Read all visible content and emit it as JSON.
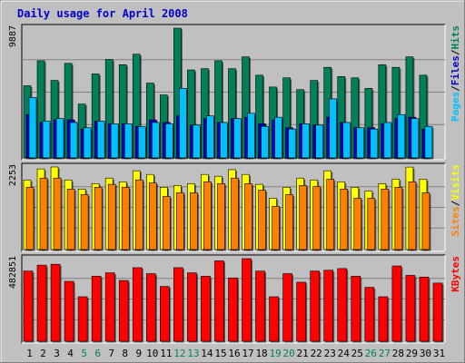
{
  "title": "Daily usage for April 2008",
  "colors": {
    "background": "#c0c0c0",
    "panel": "#c0c0c0",
    "title": "#0000cc",
    "hits": "#00805a",
    "files": "#0000cc",
    "pages": "#00c0ff",
    "visits": "#ffff00",
    "sites": "#ff8000",
    "kbytes": "#ff0000",
    "day_normal": "#000000",
    "day_weekend": "#008060"
  },
  "chart_data": [
    {
      "type": "bar",
      "panel": "hits-files-pages",
      "ymax_label": "9887",
      "ylim": [
        0,
        9887
      ],
      "grid": true,
      "legend": {
        "placement": "right",
        "entries": [
          {
            "name": "Hits",
            "color": "#00805a"
          },
          {
            "name": "Files",
            "color": "#0000cc"
          },
          {
            "name": "Pages",
            "color": "#00c0ff"
          }
        ]
      },
      "categories": [
        "1",
        "2",
        "3",
        "4",
        "5",
        "6",
        "7",
        "8",
        "9",
        "10",
        "11",
        "12",
        "13",
        "14",
        "15",
        "16",
        "17",
        "18",
        "19",
        "20",
        "21",
        "22",
        "23",
        "24",
        "25",
        "26",
        "27",
        "28",
        "29",
        "30",
        "31"
      ],
      "series": [
        {
          "name": "Hits",
          "values": [
            5500,
            7400,
            5900,
            7200,
            4100,
            6400,
            7500,
            7100,
            7900,
            5700,
            4800,
            9887,
            6700,
            6800,
            7400,
            6800,
            7700,
            6300,
            5400,
            6100,
            5200,
            5900,
            6900,
            6200,
            6100,
            5300,
            7100,
            6900,
            7700,
            6300,
            0
          ]
        },
        {
          "name": "Files",
          "values": [
            3300,
            2700,
            2900,
            2900,
            2200,
            2800,
            2600,
            2600,
            2400,
            2900,
            2700,
            3200,
            2500,
            3000,
            2700,
            3000,
            3100,
            2600,
            2900,
            2300,
            2600,
            2500,
            3100,
            2700,
            2300,
            2300,
            2600,
            3000,
            3100,
            2200,
            0
          ]
        },
        {
          "name": "Pages",
          "values": [
            4600,
            2800,
            3000,
            2700,
            2300,
            2800,
            2600,
            2600,
            2400,
            2700,
            2600,
            5300,
            2500,
            3200,
            2700,
            3000,
            3400,
            2400,
            3100,
            2200,
            2600,
            2500,
            4500,
            2700,
            2300,
            2200,
            2700,
            3300,
            3000,
            2400,
            0
          ]
        }
      ]
    },
    {
      "type": "bar",
      "panel": "visits-sites",
      "ymax_label": "2253",
      "ylim": [
        0,
        2253
      ],
      "grid": true,
      "legend": {
        "placement": "right",
        "entries": [
          {
            "name": "Visits",
            "color": "#ffff00"
          },
          {
            "name": "Sites",
            "color": "#ff8000"
          }
        ]
      },
      "categories": [
        "1",
        "2",
        "3",
        "4",
        "5",
        "6",
        "7",
        "8",
        "9",
        "10",
        "11",
        "12",
        "13",
        "14",
        "15",
        "16",
        "17",
        "18",
        "19",
        "20",
        "21",
        "22",
        "23",
        "24",
        "25",
        "26",
        "27",
        "28",
        "29",
        "30",
        "31"
      ],
      "series": [
        {
          "name": "Visits",
          "values": [
            1900,
            2200,
            2253,
            1900,
            1650,
            1800,
            1950,
            1850,
            2150,
            2050,
            1700,
            1750,
            1800,
            2050,
            2000,
            2180,
            2050,
            1780,
            1400,
            1700,
            1950,
            1900,
            2150,
            1850,
            1700,
            1600,
            1800,
            1920,
            2250,
            1920,
            0
          ]
        },
        {
          "name": "Sites",
          "values": [
            1700,
            1950,
            1950,
            1650,
            1500,
            1700,
            1780,
            1700,
            1900,
            1820,
            1450,
            1550,
            1550,
            1850,
            1800,
            1950,
            1800,
            1620,
            1180,
            1500,
            1750,
            1720,
            1920,
            1650,
            1400,
            1400,
            1650,
            1700,
            1850,
            1550,
            0
          ]
        }
      ]
    },
    {
      "type": "bar",
      "panel": "kbytes",
      "ymax_label": "482851",
      "ylim": [
        0,
        482851
      ],
      "grid": true,
      "legend": {
        "placement": "right",
        "entries": [
          {
            "name": "KBytes",
            "color": "#ff0000"
          }
        ]
      },
      "categories": [
        "1",
        "2",
        "3",
        "4",
        "5",
        "6",
        "7",
        "8",
        "9",
        "10",
        "11",
        "12",
        "13",
        "14",
        "15",
        "16",
        "17",
        "18",
        "19",
        "20",
        "21",
        "22",
        "23",
        "24",
        "25",
        "26",
        "27",
        "28",
        "29",
        "30",
        "31"
      ],
      "series": [
        {
          "name": "KBytes",
          "values": [
            410000,
            445000,
            450000,
            350000,
            260000,
            380000,
            400000,
            355000,
            430000,
            395000,
            320000,
            430000,
            400000,
            380000,
            470000,
            370000,
            482851,
            410000,
            260000,
            395000,
            345000,
            410000,
            415000,
            425000,
            380000,
            315000,
            260000,
            440000,
            385000,
            375000,
            340000
          ]
        }
      ]
    }
  ],
  "days": [
    {
      "label": "1",
      "weekend": false
    },
    {
      "label": "2",
      "weekend": false
    },
    {
      "label": "3",
      "weekend": false
    },
    {
      "label": "4",
      "weekend": false
    },
    {
      "label": "5",
      "weekend": true
    },
    {
      "label": "6",
      "weekend": true
    },
    {
      "label": "7",
      "weekend": false
    },
    {
      "label": "8",
      "weekend": false
    },
    {
      "label": "9",
      "weekend": false
    },
    {
      "label": "10",
      "weekend": false
    },
    {
      "label": "11",
      "weekend": false
    },
    {
      "label": "12",
      "weekend": true
    },
    {
      "label": "13",
      "weekend": true
    },
    {
      "label": "14",
      "weekend": false
    },
    {
      "label": "15",
      "weekend": false
    },
    {
      "label": "16",
      "weekend": false
    },
    {
      "label": "17",
      "weekend": false
    },
    {
      "label": "18",
      "weekend": false
    },
    {
      "label": "19",
      "weekend": true
    },
    {
      "label": "20",
      "weekend": true
    },
    {
      "label": "21",
      "weekend": false
    },
    {
      "label": "22",
      "weekend": false
    },
    {
      "label": "23",
      "weekend": false
    },
    {
      "label": "24",
      "weekend": false
    },
    {
      "label": "25",
      "weekend": false
    },
    {
      "label": "26",
      "weekend": true
    },
    {
      "label": "27",
      "weekend": true
    },
    {
      "label": "28",
      "weekend": false
    },
    {
      "label": "29",
      "weekend": false
    },
    {
      "label": "30",
      "weekend": false
    },
    {
      "label": "31",
      "weekend": false
    }
  ],
  "side_legends": {
    "top": [
      {
        "text": "Pages",
        "color": "#00c0ff"
      },
      {
        "text": "/",
        "color": "#000000"
      },
      {
        "text": "Files",
        "color": "#0000cc"
      },
      {
        "text": "/",
        "color": "#000000"
      },
      {
        "text": "Hits",
        "color": "#00805a"
      }
    ],
    "middle": [
      {
        "text": "Sites",
        "color": "#ff8000"
      },
      {
        "text": "/",
        "color": "#000000"
      },
      {
        "text": "Visits",
        "color": "#ffff00"
      }
    ],
    "bottom": [
      {
        "text": "KBytes",
        "color": "#ff0000"
      }
    ]
  }
}
